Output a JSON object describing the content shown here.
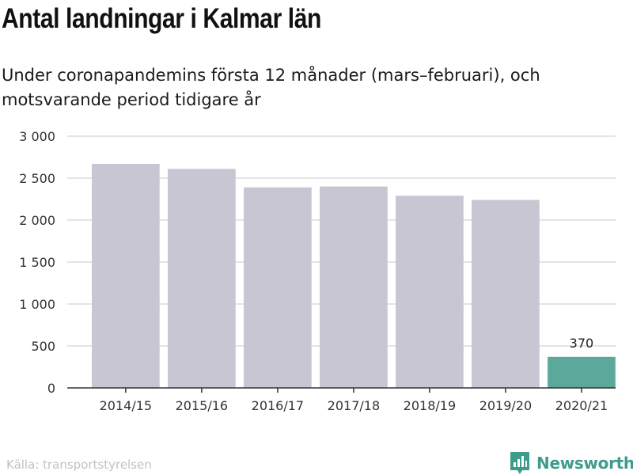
{
  "title": "Antal landningar i Kalmar län",
  "subtitle": "Under coronapandemins första 12 månader (mars–februari), och motsvarande period tidigare år",
  "source": "Källa: transportstyrelsen",
  "brand": {
    "name": "Newsworthy",
    "icon": "newsworthy-logo-icon",
    "color": "#3f9b8c"
  },
  "chart_data": {
    "type": "bar",
    "title": "Antal landningar i Kalmar län",
    "subtitle": "Under coronapandemins första 12 månader (mars–februari), och motsvarande period tidigare år",
    "xlabel": "",
    "ylabel": "",
    "categories": [
      "2014/15",
      "2015/16",
      "2016/17",
      "2017/18",
      "2018/19",
      "2019/20",
      "2020/21"
    ],
    "values": [
      2670,
      2610,
      2390,
      2400,
      2290,
      2240,
      370
    ],
    "bar_colors": [
      "#c8c6d2",
      "#c8c6d2",
      "#c8c6d2",
      "#c8c6d2",
      "#c8c6d2",
      "#c8c6d2",
      "#5ba99a"
    ],
    "data_labels": [
      {
        "category": "2020/21",
        "text": "370"
      }
    ],
    "ylim": [
      0,
      3000
    ],
    "yticks": [
      0,
      500,
      1000,
      1500,
      2000,
      2500,
      3000
    ],
    "ytick_labels": [
      "0",
      "500",
      "1 000",
      "1 500",
      "2 000",
      "2 500",
      "3 000"
    ],
    "grid": true,
    "legend": "none"
  }
}
